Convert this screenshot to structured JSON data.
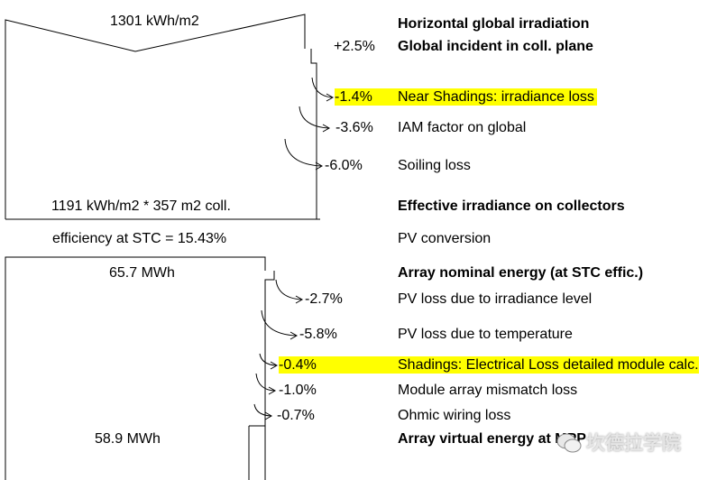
{
  "irradiance": {
    "top_value": "1301 kWh/m2",
    "effective_value": "1191 kWh/m2 * 357 m2 coll.",
    "efficiency": "efficiency at STC = 15.43%"
  },
  "energy": {
    "nominal_value": "65.7 MWh",
    "virtual_value": "58.9 MWh"
  },
  "rows": [
    {
      "pct": "",
      "label": "Horizontal global irradiation",
      "bold": true,
      "highlight": false
    },
    {
      "pct": "+2.5%",
      "label": "Global incident in coll. plane",
      "bold": true,
      "highlight": false
    },
    {
      "pct": "-1.4%",
      "label": "Near Shadings: irradiance loss",
      "bold": false,
      "highlight": true
    },
    {
      "pct": "-3.6%",
      "label": "IAM factor on global",
      "bold": false,
      "highlight": false
    },
    {
      "pct": "-6.0%",
      "label": "Soiling loss",
      "bold": false,
      "highlight": false
    },
    {
      "pct": "",
      "label": "Effective irradiance on collectors",
      "bold": true,
      "highlight": false
    },
    {
      "pct": "",
      "label": "PV conversion",
      "bold": false,
      "highlight": false
    },
    {
      "pct": "",
      "label": "Array nominal energy (at STC effic.)",
      "bold": true,
      "highlight": false
    },
    {
      "pct": "-2.7%",
      "label": "PV loss due to irradiance level",
      "bold": false,
      "highlight": false
    },
    {
      "pct": "-5.8%",
      "label": "PV loss due to temperature",
      "bold": false,
      "highlight": false
    },
    {
      "pct": "-0.4%",
      "label": "Shadings: Electrical Loss detailed module calc.",
      "bold": false,
      "highlight": true
    },
    {
      "pct": "-1.0%",
      "label": "Module array mismatch loss",
      "bold": false,
      "highlight": false
    },
    {
      "pct": "-0.7%",
      "label": "Ohmic wiring loss",
      "bold": false,
      "highlight": false
    },
    {
      "pct": "",
      "label": "Array virtual energy at MPP",
      "bold": true,
      "highlight": false
    }
  ],
  "watermark": "坎德拉学院",
  "colors": {
    "highlight": "#ffff00",
    "line": "#000000"
  }
}
